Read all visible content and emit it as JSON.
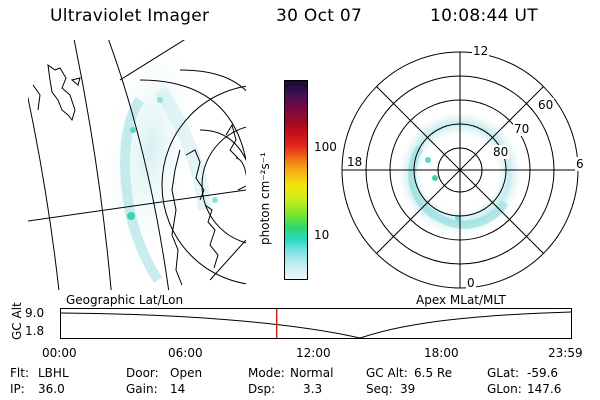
{
  "header": {
    "title": "Ultraviolet Imager",
    "date": "30 Oct 07",
    "time": "10:08:44 UT"
  },
  "colorbar": {
    "unit_label": "photon cm⁻²s⁻¹",
    "ticks": [
      "100",
      "10"
    ],
    "colors": [
      "#1a0b2e",
      "#3b0f52",
      "#6a0a4a",
      "#9c0a24",
      "#c8101a",
      "#e3281a",
      "#f07814",
      "#f7b318",
      "#f2e60e",
      "#c7ef1a",
      "#7ee82b",
      "#2fd66a",
      "#26d8c2",
      "#7ce3e5",
      "#c6eeef",
      "#eef5f5"
    ]
  },
  "left_panel": {
    "caption": "Geographic Lat/Lon"
  },
  "right_panel": {
    "caption": "Apex MLat/MLT",
    "mlt_labels": {
      "top": "12",
      "bottom": "0",
      "left": "18",
      "right": "6"
    },
    "lat_labels": [
      "60",
      "70",
      "80"
    ]
  },
  "timeline": {
    "axis_label": "GC Alt",
    "y_ticks": [
      "9.0",
      "1.8"
    ],
    "x_ticks": [
      "00:00",
      "06:00",
      "12:00",
      "18:00",
      "23:59"
    ],
    "current_time_hours": 10.15
  },
  "info": {
    "filter_label": "Flt:",
    "filter_value": "LBHL",
    "ip_label": "IP:",
    "ip_value": "36.0",
    "door_label": "Door:",
    "door_value": "Open",
    "gain_label": "Gain:",
    "gain_value": "14",
    "mode_label": "Mode:",
    "mode_value": "Normal",
    "dsp_label": "Dsp:",
    "dsp_value": "3.3",
    "gcalt_label": "GC Alt:",
    "gcalt_value": "6.5 Re",
    "seq_label": "Seq:",
    "seq_value": "39",
    "glat_label": "GLat:",
    "glat_value": "-59.6",
    "glon_label": "GLon:",
    "glon_value": "147.6"
  }
}
